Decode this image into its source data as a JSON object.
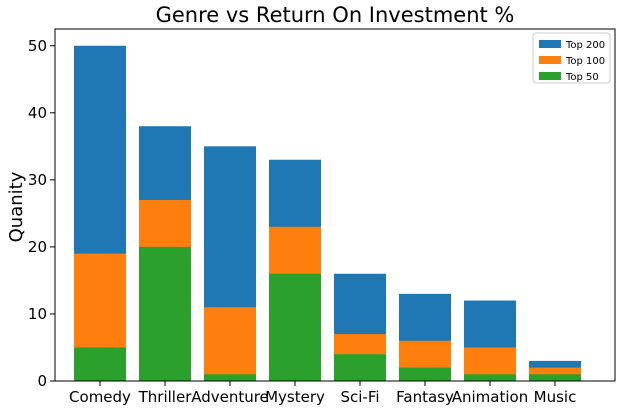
{
  "chart_data": {
    "type": "bar",
    "title": "Genre vs Return On Investment %",
    "xlabel": "",
    "ylabel": "Quanity",
    "ylim": [
      0,
      52.5
    ],
    "yticks": [
      0,
      10,
      20,
      30,
      40,
      50
    ],
    "categories": [
      "Comedy",
      "Thriller",
      "Adventure",
      "Mystery",
      "Sci-Fi",
      "Fantasy",
      "Animation",
      "Music"
    ],
    "series": [
      {
        "name": "Top 200",
        "color": "#1f77b4",
        "values": [
          50,
          38,
          35,
          33,
          16,
          13,
          12,
          3
        ]
      },
      {
        "name": "Top 100",
        "color": "#ff7f0e",
        "values": [
          19,
          27,
          11,
          23,
          7,
          6,
          5,
          2
        ]
      },
      {
        "name": "Top 50",
        "color": "#2ca02c",
        "values": [
          5,
          20,
          1,
          16,
          4,
          2,
          1,
          1
        ]
      }
    ],
    "overlay": true,
    "legend_position": "top-right",
    "grid": false
  }
}
